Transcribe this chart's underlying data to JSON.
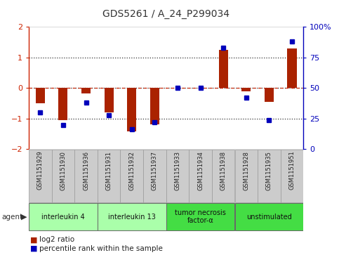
{
  "title": "GDS5261 / A_24_P299034",
  "samples": [
    "GSM1151929",
    "GSM1151930",
    "GSM1151936",
    "GSM1151931",
    "GSM1151932",
    "GSM1151937",
    "GSM1151933",
    "GSM1151934",
    "GSM1151938",
    "GSM1151928",
    "GSM1151935",
    "GSM1151951"
  ],
  "log2_ratio": [
    -0.5,
    -1.05,
    -0.18,
    -0.8,
    -1.42,
    -1.18,
    0.0,
    0.0,
    1.25,
    -0.12,
    -0.45,
    1.28
  ],
  "percentile": [
    30,
    20,
    38,
    28,
    16,
    22,
    50,
    50,
    83,
    42,
    24,
    88
  ],
  "agents": [
    {
      "label": "interleukin 4",
      "start": 0,
      "end": 2,
      "color": "#aaffaa"
    },
    {
      "label": "interleukin 13",
      "start": 3,
      "end": 5,
      "color": "#aaffaa"
    },
    {
      "label": "tumor necrosis\nfactor-α",
      "start": 6,
      "end": 8,
      "color": "#44dd44"
    },
    {
      "label": "unstimulated",
      "start": 9,
      "end": 11,
      "color": "#44dd44"
    }
  ],
  "ylim": [
    -2,
    2
  ],
  "yticks_left": [
    -2,
    -1,
    0,
    1,
    2
  ],
  "yticks_right": [
    0,
    25,
    50,
    75,
    100
  ],
  "bar_color": "#aa2200",
  "dot_color": "#0000bb",
  "background_color": "#ffffff",
  "plot_bg": "#ffffff",
  "legend_bar_label": "log2 ratio",
  "legend_dot_label": "percentile rank within the sample"
}
